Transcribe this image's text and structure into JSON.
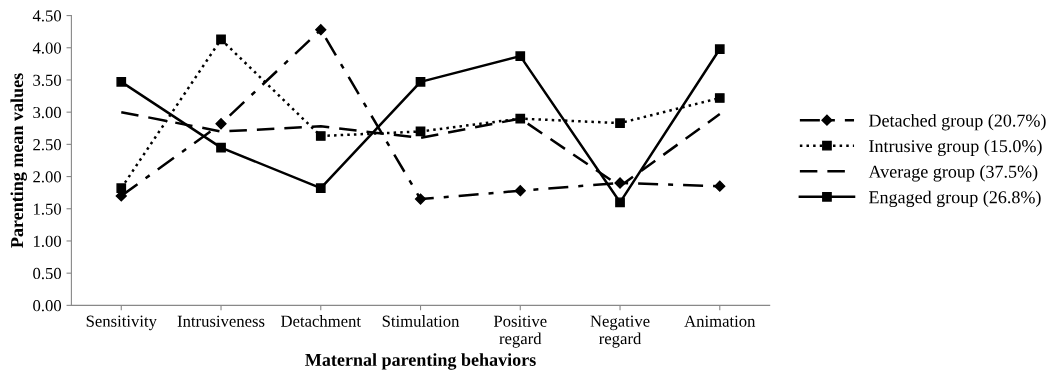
{
  "chart_data": {
    "type": "line",
    "xlabel": "Maternal parenting behaviors",
    "ylabel": "Parenting mean values",
    "categories": [
      "Sensitivity",
      "Intrusiveness",
      "Detachment",
      "Stimulation",
      "Positive\nregard",
      "Negative\nregard",
      "Animation"
    ],
    "series": [
      {
        "name": "Detached group (20.7%)",
        "color": "#000000",
        "marker": "diamond",
        "line_style": "dashdot",
        "values": [
          1.7,
          2.82,
          4.28,
          1.65,
          1.78,
          1.9,
          1.85
        ]
      },
      {
        "name": "Intrusive group (15.0%)",
        "color": "#000000",
        "marker": "square",
        "line_style": "dotted",
        "values": [
          1.82,
          4.13,
          2.63,
          2.7,
          2.9,
          2.83,
          3.22
        ]
      },
      {
        "name": "Average group (37.5%)",
        "color": "#000000",
        "marker": "none",
        "line_style": "dashed",
        "values": [
          3.0,
          2.7,
          2.78,
          2.6,
          2.9,
          1.85,
          2.97
        ]
      },
      {
        "name": "Engaged group (26.8%)",
        "color": "#000000",
        "marker": "square",
        "line_style": "solid",
        "values": [
          3.47,
          2.45,
          1.82,
          3.47,
          3.87,
          1.6,
          3.98
        ]
      }
    ],
    "ylim": [
      0,
      4.5
    ],
    "yticks": [
      {
        "value": 0,
        "label": "0.00"
      },
      {
        "value": 0.5,
        "label": "0.50"
      },
      {
        "value": 1,
        "label": "1.00"
      },
      {
        "value": 1.5,
        "label": "1.50"
      },
      {
        "value": 2,
        "label": "2.00"
      },
      {
        "value": 2.5,
        "label": "2.50"
      },
      {
        "value": 3,
        "label": "3.00"
      },
      {
        "value": 3.5,
        "label": "3.50"
      },
      {
        "value": 4,
        "label": "4.00"
      },
      {
        "value": 4.5,
        "label": "4.50"
      }
    ],
    "grid": false,
    "legend": "right"
  }
}
